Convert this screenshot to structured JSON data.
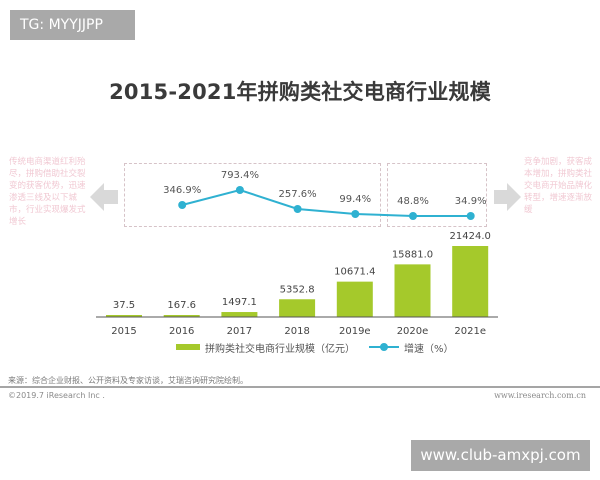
{
  "badge_top": "TG: MYYJJPP",
  "title": "2015-2021年拼购类社交电商行业规模",
  "notes": {
    "left": "传统电商渠道红利殆尽，拼购借助社交裂变的获客优势，迅速渗透三线及以下城市，行业实现爆发式增长",
    "right": "竞争加剧，获客成本增加，拼购类社交电商开始品牌化转型，增速逐渐放缓"
  },
  "legend": {
    "bar_label": "拼购类社交电商行业规模（亿元）",
    "line_label": "增速（%）"
  },
  "footer": {
    "source": "来源：综合企业财报、公开资料及专家访谈，艾瑞咨询研究院绘制。",
    "copyright": "©2019.7 iResearch Inc .",
    "site": "www.iresearch.com.cn"
  },
  "badge_bottom": "www.club-amxpj.com",
  "colors": {
    "bar": "#a5c92b",
    "line": "#2fb1d1",
    "dash": "#d6c3c8",
    "arrow": "#d9d9d9"
  },
  "chart_data": {
    "type": "bar+line",
    "title": "2015-2021年拼购类社交电商行业规模",
    "categories": [
      "2015",
      "2016",
      "2017",
      "2018",
      "2019e",
      "2020e",
      "2021e"
    ],
    "series": [
      {
        "name": "拼购类社交电商行业规模（亿元）",
        "type": "bar",
        "values": [
          37.5,
          167.6,
          1497.1,
          5352.8,
          10671.4,
          15881.0,
          21424.0
        ],
        "labels": [
          "37.5",
          "167.6",
          "1497.1",
          "5352.8",
          "10671.4",
          "15881.0",
          "21424.0"
        ]
      },
      {
        "name": "增速（%）",
        "type": "line",
        "values": [
          null,
          346.9,
          793.4,
          257.6,
          99.4,
          48.8,
          34.9
        ],
        "labels": [
          "",
          "346.9%",
          "793.4%",
          "257.6%",
          "99.4%",
          "48.8%",
          "34.9%"
        ]
      }
    ],
    "xlabel": "",
    "ylabel": "",
    "grid": false,
    "legend_position": "bottom"
  }
}
